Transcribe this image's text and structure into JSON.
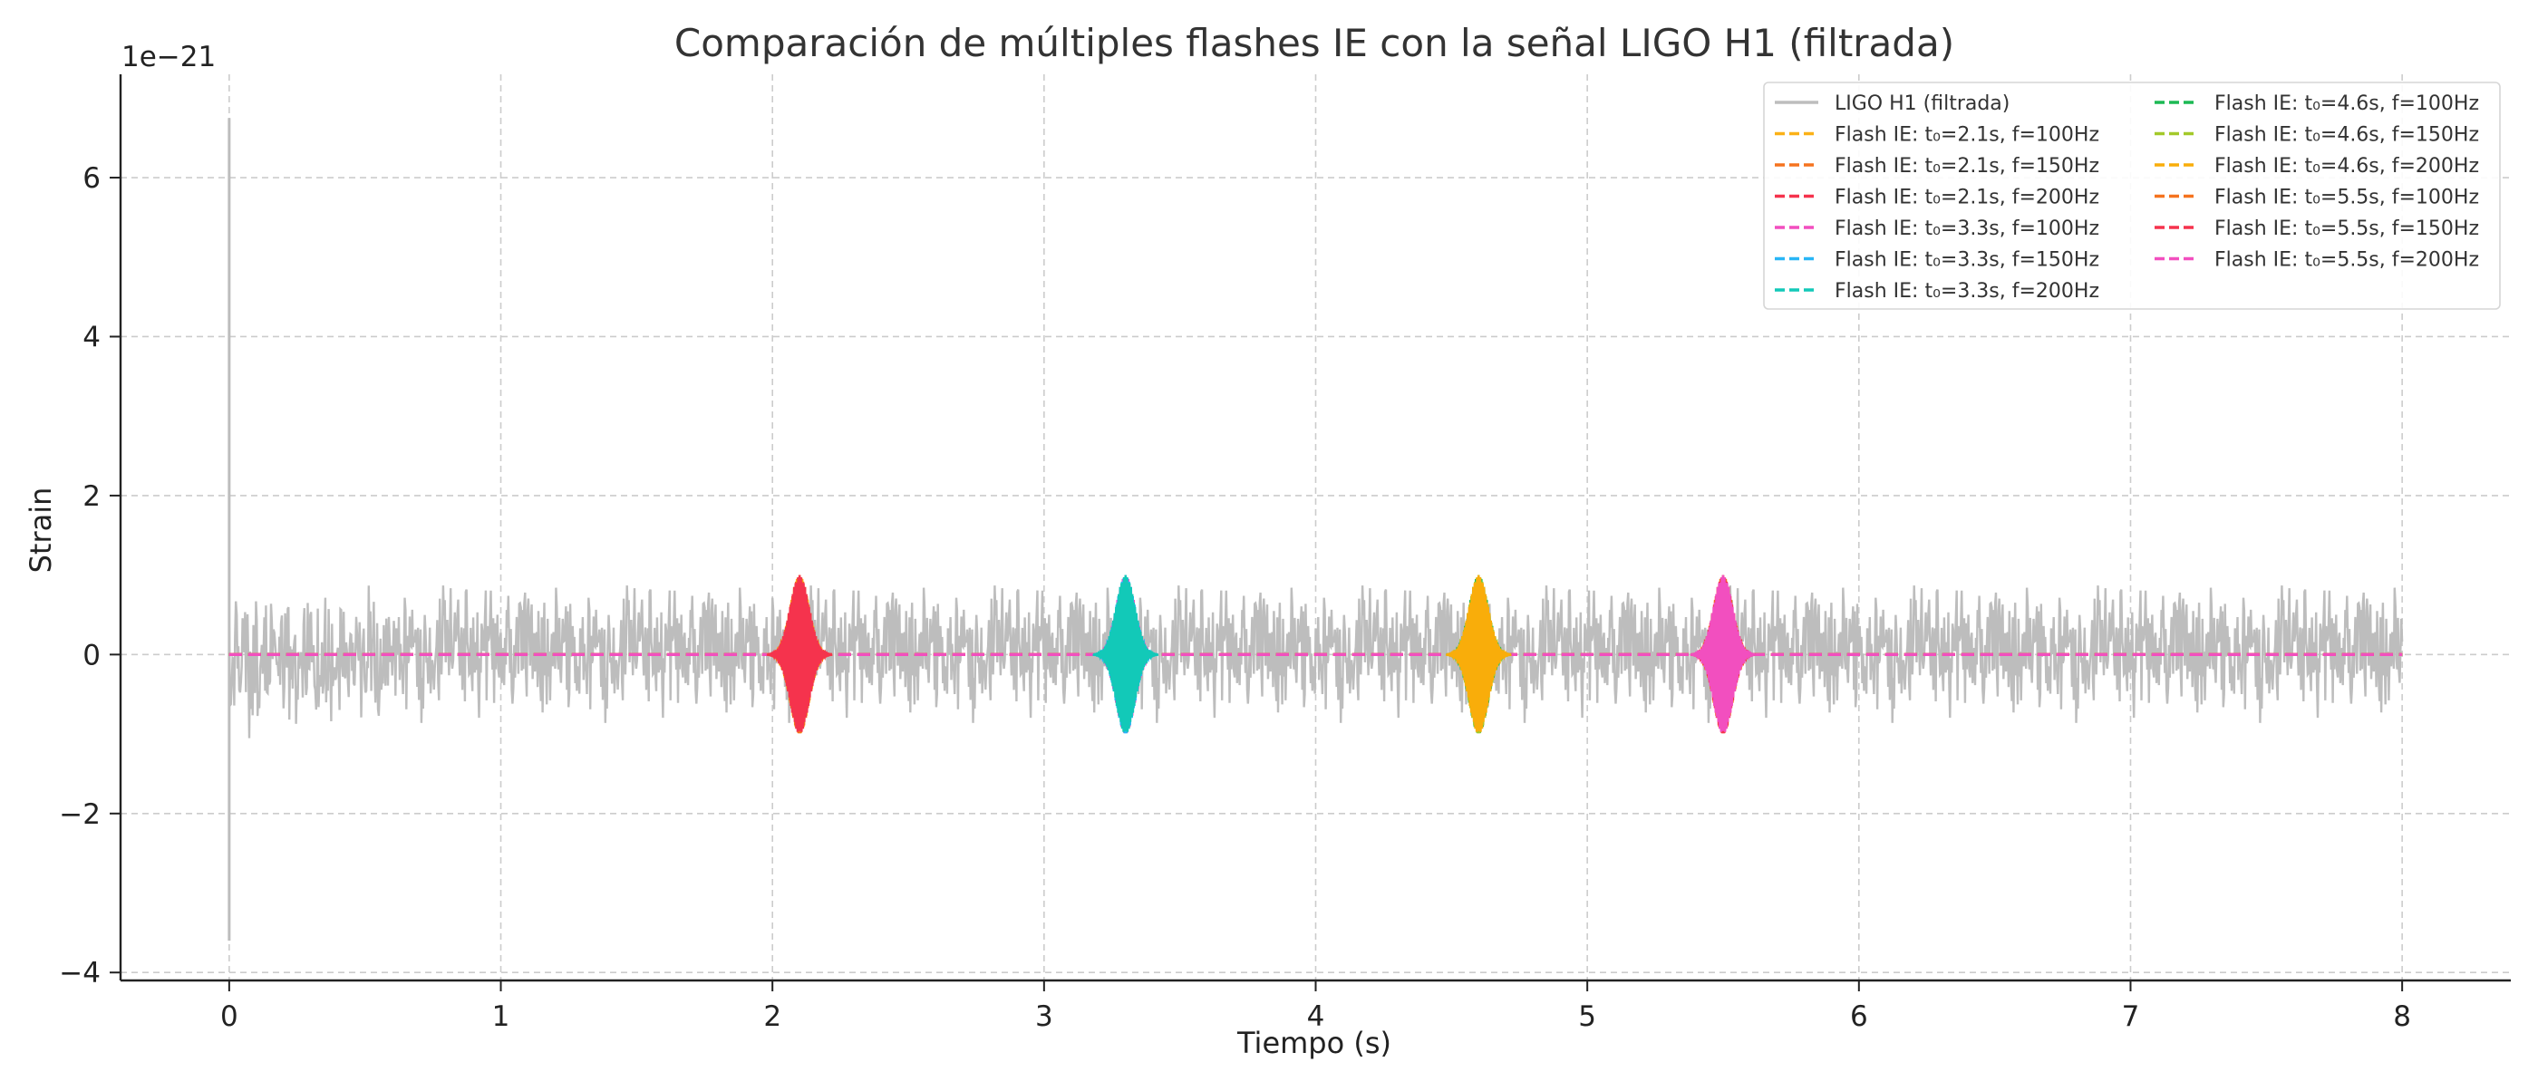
{
  "chart_data": {
    "type": "line",
    "title": "Comparación de múltiples flashes IE con la señal LIGO H1 (filtrada)",
    "xlabel": "Tiempo (s)",
    "ylabel": "Strain",
    "y_scale_label": "1e−21",
    "xlim": [
      -0.4,
      8.4
    ],
    "ylim": [
      -4.1,
      7.3
    ],
    "xticks": [
      0,
      1,
      2,
      3,
      4,
      5,
      6,
      7,
      8
    ],
    "xtick_labels": [
      "0",
      "1",
      "2",
      "3",
      "4",
      "5",
      "6",
      "7",
      "8"
    ],
    "yticks": [
      -4,
      -2,
      0,
      2,
      4,
      6
    ],
    "ytick_labels": [
      "−4",
      "−2",
      "0",
      "2",
      "4",
      "6"
    ],
    "grid": true,
    "legend_position": "top-right",
    "legend_columns": 2,
    "noise": {
      "name": "LIGO H1 (filtrada)",
      "color": "#bdbdbd",
      "t_start": 0,
      "t_end": 8,
      "typical_amplitude": 0.8,
      "initial_spike": {
        "t": 0,
        "max": 6.75,
        "min": -3.6
      }
    },
    "series": [
      {
        "name": "LIGO H1 (filtrada)",
        "color": "#bdbdbd",
        "style": "solid"
      },
      {
        "name": "Flash IE: t₀=2.1s, f=100Hz",
        "color": "#fbb117",
        "style": "dashed",
        "t0": 2.1,
        "f": 100,
        "amplitude": 1.0
      },
      {
        "name": "Flash IE: t₀=2.1s, f=150Hz",
        "color": "#f5731f",
        "style": "dashed",
        "t0": 2.1,
        "f": 150,
        "amplitude": 1.0
      },
      {
        "name": "Flash IE: t₀=2.1s, f=200Hz",
        "color": "#f5334d",
        "style": "dashed",
        "t0": 2.1,
        "f": 200,
        "amplitude": 1.0
      },
      {
        "name": "Flash IE: t₀=3.3s, f=100Hz",
        "color": "#f24fbf",
        "style": "dashed",
        "t0": 3.3,
        "f": 100,
        "amplitude": 1.0
      },
      {
        "name": "Flash IE: t₀=3.3s, f=150Hz",
        "color": "#29b6f6",
        "style": "dashed",
        "t0": 3.3,
        "f": 150,
        "amplitude": 1.0
      },
      {
        "name": "Flash IE: t₀=3.3s, f=200Hz",
        "color": "#12c9b8",
        "style": "dashed",
        "t0": 3.3,
        "f": 200,
        "amplitude": 1.0
      },
      {
        "name": "Flash IE: t₀=4.6s, f=100Hz",
        "color": "#1db954",
        "style": "dashed",
        "t0": 4.6,
        "f": 100,
        "amplitude": 1.0
      },
      {
        "name": "Flash IE: t₀=4.6s, f=150Hz",
        "color": "#a3c92a",
        "style": "dashed",
        "t0": 4.6,
        "f": 150,
        "amplitude": 1.0
      },
      {
        "name": "Flash IE: t₀=4.6s, f=200Hz",
        "color": "#f9ad0a",
        "style": "dashed",
        "t0": 4.6,
        "f": 200,
        "amplitude": 1.0
      },
      {
        "name": "Flash IE: t₀=5.5s, f=100Hz",
        "color": "#f5731f",
        "style": "dashed",
        "t0": 5.5,
        "f": 100,
        "amplitude": 1.0
      },
      {
        "name": "Flash IE: t₀=5.5s, f=150Hz",
        "color": "#f5334d",
        "style": "dashed",
        "t0": 5.5,
        "f": 150,
        "amplitude": 1.0
      },
      {
        "name": "Flash IE: t₀=5.5s, f=200Hz",
        "color": "#f24fbf",
        "style": "dashed",
        "t0": 5.5,
        "f": 200,
        "amplitude": 1.0
      }
    ]
  }
}
